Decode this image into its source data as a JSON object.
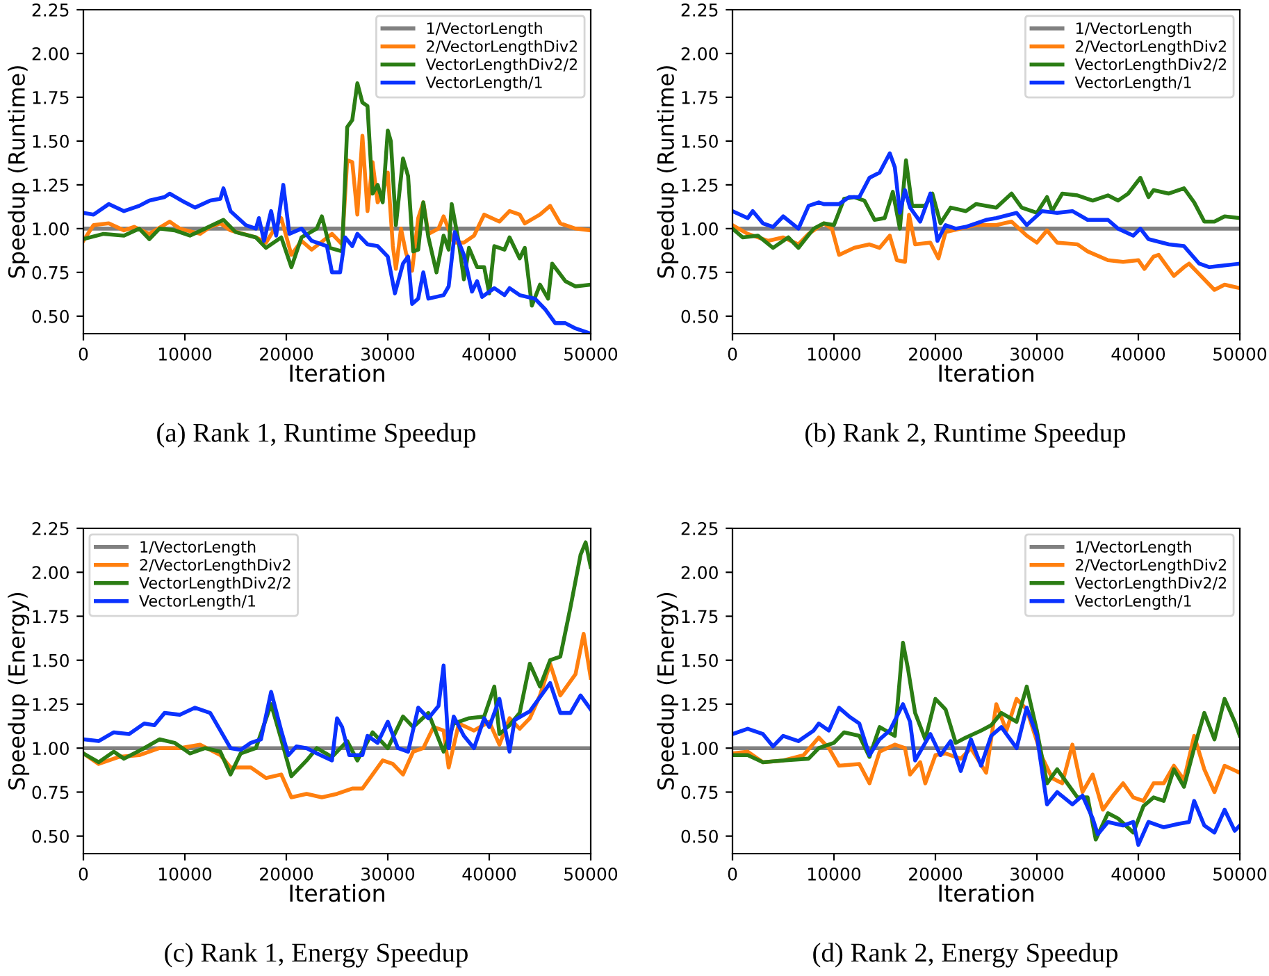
{
  "chart_data": [
    {
      "type": "line",
      "ylabel": "Speedup (Runtime)",
      "xlabel": "Iteration",
      "annotations": [
        "(a) Rank 1, Runtime Speedup"
      ],
      "xlim": [
        0,
        50000
      ],
      "ylim": [
        0.4,
        2.25
      ],
      "xticks": [
        0,
        10000,
        20000,
        30000,
        40000,
        50000
      ],
      "yticks": [
        {
          "value": 0.5,
          "label": "0.50"
        },
        {
          "value": 0.75,
          "label": "0.75"
        },
        {
          "value": 1.0,
          "label": "1.00"
        },
        {
          "value": 1.25,
          "label": "1.25"
        },
        {
          "value": 1.5,
          "label": "1.50"
        },
        {
          "value": 1.75,
          "label": "1.75"
        },
        {
          "value": 2.0,
          "label": "2.00"
        },
        {
          "value": 2.25,
          "label": "2.25"
        }
      ],
      "legend": "top right",
      "grid": false,
      "marker": "none",
      "line_style": "solid",
      "series": [
        {
          "name": "1/VectorLength",
          "color": "#808080",
          "x": [
            0,
            50000
          ],
          "values": [
            1.0,
            1.0
          ]
        },
        {
          "name": "2/VectorLengthDiv2",
          "color": "#ff7f0e",
          "x": [
            0,
            1000,
            2500,
            4000,
            5000,
            6500,
            8500,
            9500,
            11500,
            12500,
            13500,
            14500,
            17000,
            18000,
            19500,
            20500,
            21500,
            22500,
            24500,
            25500,
            26000,
            26500,
            27000,
            27500,
            28000,
            28500,
            29000,
            29500,
            30000,
            30500,
            30800,
            31300,
            31800,
            32400,
            33000,
            33500,
            34000,
            35000,
            35500,
            36500,
            37500,
            38500,
            39500,
            41000,
            42000,
            43000,
            43500,
            45000,
            46000,
            47000,
            48500,
            50000
          ],
          "values": [
            0.93,
            1.02,
            1.03,
            0.99,
            1.01,
            0.97,
            1.04,
            1.0,
            0.97,
            1.01,
            1.03,
            0.99,
            0.95,
            0.92,
            1.06,
            0.85,
            0.93,
            0.88,
            0.97,
            0.91,
            1.39,
            1.38,
            1.08,
            1.53,
            1.1,
            1.38,
            1.15,
            1.2,
            1.32,
            0.9,
            0.77,
            1.0,
            0.86,
            0.76,
            1.06,
            1.15,
            0.97,
            1.0,
            1.07,
            0.92,
            0.92,
            0.96,
            1.08,
            1.04,
            1.1,
            1.08,
            1.03,
            1.08,
            1.13,
            1.03,
            1.0,
            0.99
          ]
        },
        {
          "name": "VectorLengthDiv2/2",
          "color": "#2b7d14",
          "x": [
            0,
            2000,
            4000,
            5500,
            6500,
            7500,
            9000,
            10500,
            12000,
            13800,
            15000,
            17000,
            18000,
            19500,
            20500,
            21500,
            23000,
            23500,
            24300,
            25500,
            26000,
            26500,
            27000,
            27500,
            28000,
            28500,
            29000,
            29500,
            30000,
            30300,
            30800,
            31500,
            32000,
            32500,
            33000,
            33500,
            34000,
            34800,
            35500,
            36000,
            36300,
            37000,
            37500,
            38000,
            38800,
            39500,
            40000,
            40500,
            41500,
            42000,
            43000,
            43500,
            44200,
            45000,
            45800,
            46200,
            47500,
            48500,
            50000
          ],
          "values": [
            0.94,
            0.97,
            0.96,
            1.0,
            0.94,
            1.0,
            0.99,
            0.96,
            1.0,
            1.05,
            0.98,
            0.95,
            0.89,
            0.95,
            0.78,
            0.95,
            1.0,
            1.07,
            0.89,
            0.87,
            1.58,
            1.62,
            1.83,
            1.72,
            1.7,
            1.2,
            1.25,
            1.15,
            1.56,
            1.5,
            1.02,
            1.4,
            1.3,
            0.87,
            0.88,
            1.15,
            0.95,
            0.75,
            0.96,
            0.88,
            1.14,
            0.92,
            0.71,
            0.89,
            0.78,
            0.78,
            0.63,
            0.9,
            0.88,
            0.95,
            0.83,
            0.89,
            0.56,
            0.68,
            0.6,
            0.8,
            0.7,
            0.67,
            0.68
          ]
        },
        {
          "name": "VectorLength/1",
          "color": "#0a32ff",
          "x": [
            0,
            1000,
            2500,
            4000,
            5500,
            6500,
            8000,
            8500,
            10000,
            11000,
            12500,
            13500,
            13800,
            14500,
            16000,
            17000,
            17300,
            17800,
            18500,
            19000,
            19700,
            20300,
            21500,
            22500,
            24000,
            24500,
            25300,
            25800,
            26500,
            27000,
            28000,
            29000,
            30000,
            30700,
            31500,
            32000,
            32400,
            33000,
            33500,
            34000,
            35500,
            36000,
            36600,
            37500,
            38300,
            38800,
            39300,
            40500,
            41500,
            42000,
            43000,
            44500,
            45500,
            46500,
            47500,
            48500,
            50000
          ],
          "values": [
            1.09,
            1.08,
            1.14,
            1.1,
            1.13,
            1.16,
            1.18,
            1.2,
            1.15,
            1.12,
            1.16,
            1.17,
            1.23,
            1.1,
            1.02,
            1.0,
            1.06,
            0.93,
            1.1,
            0.96,
            1.25,
            0.97,
            1.0,
            0.93,
            0.9,
            0.75,
            0.75,
            0.95,
            0.9,
            0.97,
            0.91,
            0.9,
            0.84,
            0.63,
            0.8,
            0.84,
            0.57,
            0.6,
            0.75,
            0.6,
            0.62,
            0.67,
            0.98,
            0.85,
            0.64,
            0.7,
            0.61,
            0.66,
            0.62,
            0.66,
            0.62,
            0.6,
            0.54,
            0.46,
            0.46,
            0.43,
            0.4
          ]
        }
      ]
    },
    {
      "type": "line",
      "ylabel": "Speedup (Runtime)",
      "xlabel": "Iteration",
      "annotations": [
        "(b) Rank 2, Runtime Speedup"
      ],
      "xlim": [
        0,
        50000
      ],
      "ylim": [
        0.4,
        2.25
      ],
      "xticks": [
        0,
        10000,
        20000,
        30000,
        40000,
        50000
      ],
      "yticks": [
        {
          "value": 0.5,
          "label": "0.50"
        },
        {
          "value": 0.75,
          "label": "0.75"
        },
        {
          "value": 1.0,
          "label": "1.00"
        },
        {
          "value": 1.25,
          "label": "1.25"
        },
        {
          "value": 1.5,
          "label": "1.50"
        },
        {
          "value": 1.75,
          "label": "1.75"
        },
        {
          "value": 2.0,
          "label": "2.00"
        },
        {
          "value": 2.25,
          "label": "2.25"
        }
      ],
      "legend": "top right",
      "grid": false,
      "marker": "none",
      "line_style": "solid",
      "series": [
        {
          "name": "1/VectorLength",
          "color": "#808080",
          "x": [
            0,
            50000
          ],
          "values": [
            1.0,
            1.0
          ]
        },
        {
          "name": "2/VectorLengthDiv2",
          "color": "#ff7f0e",
          "x": [
            0,
            1500,
            3500,
            5000,
            6500,
            7500,
            9000,
            9800,
            10500,
            12000,
            13500,
            14500,
            15500,
            16200,
            17000,
            17400,
            18000,
            19500,
            20300,
            21000,
            22500,
            24000,
            26000,
            27500,
            29000,
            30000,
            31000,
            32000,
            34000,
            35000,
            37000,
            38500,
            40000,
            40600,
            41500,
            42000,
            43500,
            44500,
            45000,
            46000,
            47500,
            48500,
            50000
          ],
          "values": [
            1.02,
            0.97,
            0.93,
            0.95,
            0.91,
            0.97,
            1.03,
            1.0,
            0.85,
            0.89,
            0.91,
            0.89,
            0.96,
            0.82,
            0.81,
            1.08,
            0.91,
            0.92,
            0.83,
            0.98,
            1.0,
            1.02,
            1.02,
            1.04,
            0.96,
            0.92,
            0.99,
            0.92,
            0.91,
            0.87,
            0.82,
            0.81,
            0.82,
            0.77,
            0.84,
            0.85,
            0.73,
            0.78,
            0.8,
            0.74,
            0.65,
            0.68,
            0.66
          ]
        },
        {
          "name": "VectorLengthDiv2/2",
          "color": "#2b7d14",
          "x": [
            0,
            1000,
            2500,
            4000,
            5500,
            6500,
            8000,
            9000,
            10000,
            11000,
            12000,
            13000,
            14000,
            15000,
            15800,
            16500,
            17100,
            17700,
            19000,
            19700,
            20500,
            21500,
            23000,
            24000,
            26000,
            27500,
            28500,
            30000,
            31000,
            31500,
            32500,
            34000,
            35500,
            37000,
            38000,
            39000,
            40200,
            41000,
            41500,
            43000,
            44500,
            45500,
            46500,
            47500,
            48500,
            50000
          ],
          "values": [
            1.0,
            0.95,
            0.96,
            0.89,
            0.95,
            0.89,
            1.0,
            1.03,
            1.02,
            1.17,
            1.18,
            1.16,
            1.05,
            1.06,
            1.21,
            1.0,
            1.39,
            1.13,
            1.13,
            1.2,
            1.03,
            1.12,
            1.1,
            1.14,
            1.12,
            1.2,
            1.12,
            1.09,
            1.18,
            1.1,
            1.2,
            1.19,
            1.16,
            1.19,
            1.16,
            1.2,
            1.29,
            1.18,
            1.22,
            1.2,
            1.23,
            1.15,
            1.04,
            1.04,
            1.07,
            1.06
          ]
        },
        {
          "name": "VectorLength/1",
          "color": "#0a32ff",
          "x": [
            0,
            1500,
            2000,
            3000,
            4000,
            5000,
            6500,
            7500,
            8500,
            9000,
            10500,
            11500,
            12500,
            13500,
            14500,
            15500,
            16000,
            16500,
            17000,
            17500,
            18500,
            19500,
            20200,
            21000,
            22000,
            23000,
            25000,
            26000,
            28000,
            29000,
            30500,
            32000,
            33500,
            35000,
            37000,
            38000,
            39500,
            40200,
            41000,
            43000,
            44500,
            46000,
            47000,
            48500,
            50000
          ],
          "values": [
            1.1,
            1.06,
            1.1,
            1.03,
            1.01,
            1.07,
            1.0,
            1.13,
            1.15,
            1.14,
            1.14,
            1.18,
            1.18,
            1.29,
            1.32,
            1.43,
            1.35,
            1.09,
            1.22,
            1.12,
            1.04,
            1.2,
            0.93,
            1.02,
            1.0,
            1.01,
            1.05,
            1.06,
            1.09,
            1.02,
            1.1,
            1.09,
            1.1,
            1.05,
            1.05,
            1.0,
            0.96,
            1.0,
            0.94,
            0.91,
            0.9,
            0.8,
            0.78,
            0.79,
            0.8
          ]
        }
      ]
    },
    {
      "type": "line",
      "ylabel": "Speedup (Energy)",
      "xlabel": "Iteration",
      "annotations": [
        "(c) Rank 1, Energy Speedup"
      ],
      "xlim": [
        0,
        50000
      ],
      "ylim": [
        0.4,
        2.25
      ],
      "xticks": [
        0,
        10000,
        20000,
        30000,
        40000,
        50000
      ],
      "yticks": [
        {
          "value": 0.5,
          "label": "0.50"
        },
        {
          "value": 0.75,
          "label": "0.75"
        },
        {
          "value": 1.0,
          "label": "1.00"
        },
        {
          "value": 1.25,
          "label": "1.25"
        },
        {
          "value": 1.5,
          "label": "1.50"
        },
        {
          "value": 1.75,
          "label": "1.75"
        },
        {
          "value": 2.0,
          "label": "2.00"
        },
        {
          "value": 2.25,
          "label": "2.25"
        }
      ],
      "legend": "top left",
      "grid": false,
      "marker": "none",
      "line_style": "solid",
      "series": [
        {
          "name": "1/VectorLength",
          "color": "#808080",
          "x": [
            0,
            50000
          ],
          "values": [
            1.0,
            1.0
          ]
        },
        {
          "name": "2/VectorLengthDiv2",
          "color": "#ff7f0e",
          "x": [
            0,
            1500,
            3500,
            5500,
            7500,
            9500,
            11500,
            13500,
            14500,
            16500,
            18000,
            19500,
            20500,
            22000,
            23500,
            25000,
            26500,
            27500,
            28500,
            29500,
            30500,
            31500,
            32500,
            33500,
            34500,
            35500,
            36000,
            37000,
            38500,
            40000,
            41000,
            42000,
            43000,
            44000,
            45000,
            46000,
            47000,
            48500,
            49300,
            50000
          ],
          "values": [
            0.97,
            0.91,
            0.95,
            0.96,
            1.0,
            1.0,
            1.02,
            0.96,
            0.89,
            0.89,
            0.83,
            0.85,
            0.72,
            0.74,
            0.72,
            0.74,
            0.77,
            0.77,
            0.85,
            0.93,
            0.91,
            0.85,
            0.98,
            1.0,
            1.12,
            1.1,
            0.89,
            1.14,
            1.1,
            1.15,
            1.02,
            1.17,
            1.11,
            1.17,
            1.3,
            1.48,
            1.3,
            1.42,
            1.65,
            1.4
          ]
        },
        {
          "name": "VectorLengthDiv2/2",
          "color": "#2b7d14",
          "x": [
            0,
            1500,
            3000,
            4000,
            6000,
            7500,
            9000,
            10500,
            12000,
            13500,
            14500,
            15500,
            17000,
            18500,
            19500,
            20500,
            22000,
            23000,
            24500,
            26000,
            27000,
            28500,
            30000,
            31500,
            32500,
            34000,
            35500,
            36500,
            38000,
            39500,
            40500,
            41000,
            42000,
            43000,
            44000,
            45000,
            46000,
            47000,
            48000,
            49000,
            49500,
            50000
          ],
          "values": [
            0.97,
            0.92,
            0.98,
            0.94,
            1.0,
            1.05,
            1.03,
            0.97,
            1.0,
            0.98,
            0.85,
            0.97,
            1.0,
            1.25,
            1.05,
            0.84,
            0.93,
            1.0,
            0.95,
            1.04,
            0.93,
            1.09,
            1.0,
            1.18,
            1.12,
            1.2,
            0.98,
            1.14,
            1.17,
            1.18,
            1.35,
            1.08,
            1.13,
            1.2,
            1.48,
            1.35,
            1.5,
            1.52,
            1.8,
            2.1,
            2.17,
            2.03
          ]
        },
        {
          "name": "VectorLength/1",
          "color": "#0a32ff",
          "x": [
            0,
            1500,
            3000,
            4500,
            6000,
            7000,
            8000,
            9500,
            11000,
            12500,
            13500,
            14500,
            15500,
            16500,
            17500,
            18500,
            19500,
            20200,
            21000,
            22000,
            23000,
            24500,
            25000,
            25500,
            26200,
            27500,
            28000,
            29000,
            30000,
            31000,
            32000,
            33000,
            34000,
            35000,
            35500,
            36000,
            36500,
            37500,
            38500,
            39500,
            40000,
            41000,
            42000,
            42500,
            44000,
            45000,
            46000,
            47000,
            48000,
            49000,
            50000
          ],
          "values": [
            1.05,
            1.04,
            1.09,
            1.08,
            1.14,
            1.13,
            1.2,
            1.19,
            1.23,
            1.2,
            1.1,
            1.0,
            0.99,
            1.03,
            1.05,
            1.32,
            1.1,
            0.96,
            1.01,
            1.0,
            0.97,
            0.93,
            1.17,
            1.12,
            0.96,
            0.96,
            1.07,
            1.03,
            1.15,
            1.0,
            0.98,
            1.23,
            1.17,
            1.24,
            1.47,
            1.0,
            1.18,
            1.07,
            1.0,
            1.17,
            1.12,
            1.28,
            0.98,
            1.16,
            1.21,
            1.29,
            1.37,
            1.2,
            1.2,
            1.3,
            1.22
          ]
        }
      ]
    },
    {
      "type": "line",
      "ylabel": "Speedup (Energy)",
      "xlabel": "Iteration",
      "annotations": [
        "(d) Rank 2, Energy Speedup"
      ],
      "xlim": [
        0,
        50000
      ],
      "ylim": [
        0.4,
        2.25
      ],
      "xticks": [
        0,
        10000,
        20000,
        30000,
        40000,
        50000
      ],
      "yticks": [
        {
          "value": 0.5,
          "label": "0.50"
        },
        {
          "value": 0.75,
          "label": "0.75"
        },
        {
          "value": 1.0,
          "label": "1.00"
        },
        {
          "value": 1.25,
          "label": "1.25"
        },
        {
          "value": 1.5,
          "label": "1.50"
        },
        {
          "value": 1.75,
          "label": "1.75"
        },
        {
          "value": 2.0,
          "label": "2.00"
        },
        {
          "value": 2.25,
          "label": "2.25"
        }
      ],
      "legend": "top right",
      "grid": false,
      "marker": "none",
      "line_style": "solid",
      "series": [
        {
          "name": "1/VectorLength",
          "color": "#808080",
          "x": [
            0,
            50000
          ],
          "values": [
            1.0,
            1.0
          ]
        },
        {
          "name": "2/VectorLengthDiv2",
          "color": "#ff7f0e",
          "x": [
            0,
            1500,
            3000,
            5000,
            7000,
            8500,
            9500,
            10500,
            12500,
            13500,
            14500,
            16000,
            17000,
            17500,
            18500,
            19000,
            20000,
            21000,
            22500,
            23500,
            25000,
            26000,
            27000,
            28000,
            29000,
            30500,
            31500,
            32500,
            33500,
            34500,
            35500,
            36500,
            37500,
            38500,
            39500,
            40500,
            41500,
            42500,
            43500,
            44500,
            45500,
            46500,
            47500,
            48500,
            50000
          ],
          "values": [
            0.97,
            0.98,
            0.92,
            0.93,
            0.96,
            1.06,
            1.0,
            0.9,
            0.91,
            0.8,
            0.98,
            1.02,
            1.0,
            0.85,
            0.92,
            0.8,
            0.96,
            0.97,
            0.94,
            1.0,
            0.86,
            1.25,
            1.1,
            1.28,
            1.22,
            0.95,
            0.83,
            0.8,
            1.02,
            0.75,
            0.85,
            0.65,
            0.73,
            0.8,
            0.72,
            0.7,
            0.8,
            0.8,
            0.9,
            0.82,
            1.07,
            0.88,
            0.75,
            0.9,
            0.86
          ]
        },
        {
          "name": "VectorLengthDiv2/2",
          "color": "#2b7d14",
          "x": [
            0,
            1500,
            3000,
            5000,
            7500,
            8500,
            10000,
            11000,
            12500,
            13500,
            14500,
            16000,
            16800,
            17300,
            18000,
            19000,
            20000,
            21000,
            22000,
            23000,
            24500,
            25500,
            26500,
            28000,
            29000,
            30000,
            31000,
            32000,
            33000,
            34000,
            35000,
            35800,
            37000,
            38000,
            39500,
            40500,
            41500,
            42500,
            43500,
            44500,
            45500,
            46500,
            47500,
            48500,
            49500,
            50000
          ],
          "values": [
            0.96,
            0.96,
            0.92,
            0.93,
            0.94,
            1.0,
            1.03,
            1.09,
            1.07,
            0.95,
            1.12,
            1.07,
            1.6,
            1.45,
            1.2,
            1.05,
            1.28,
            1.22,
            1.03,
            1.06,
            1.1,
            1.13,
            1.2,
            1.15,
            1.35,
            1.1,
            0.8,
            0.88,
            0.8,
            0.72,
            0.72,
            0.48,
            0.63,
            0.6,
            0.52,
            0.67,
            0.72,
            0.7,
            0.88,
            0.78,
            1.0,
            1.2,
            1.05,
            1.28,
            1.15,
            1.07
          ]
        },
        {
          "name": "VectorLength/1",
          "color": "#0a32ff",
          "x": [
            0,
            1500,
            3000,
            4000,
            5000,
            6500,
            8000,
            8500,
            9500,
            10500,
            11500,
            12500,
            13500,
            14500,
            15500,
            16800,
            17500,
            18000,
            19500,
            20500,
            21500,
            22500,
            23500,
            24500,
            25500,
            26500,
            28000,
            29000,
            30000,
            31000,
            32000,
            33500,
            34500,
            35500,
            36000,
            37000,
            38500,
            39500,
            40000,
            41000,
            42500,
            44000,
            45000,
            45500,
            46500,
            47500,
            48500,
            49500,
            50000
          ],
          "values": [
            1.08,
            1.11,
            1.08,
            1.01,
            1.07,
            1.04,
            1.1,
            1.14,
            1.1,
            1.23,
            1.18,
            1.14,
            0.96,
            1.05,
            1.1,
            1.25,
            1.15,
            0.93,
            1.08,
            0.96,
            1.04,
            0.87,
            1.05,
            0.9,
            1.07,
            1.12,
            1.0,
            1.23,
            1.07,
            0.68,
            0.75,
            0.68,
            0.73,
            0.6,
            0.51,
            0.58,
            0.56,
            0.58,
            0.45,
            0.58,
            0.55,
            0.57,
            0.58,
            0.7,
            0.56,
            0.52,
            0.65,
            0.53,
            0.56
          ]
        }
      ]
    }
  ]
}
